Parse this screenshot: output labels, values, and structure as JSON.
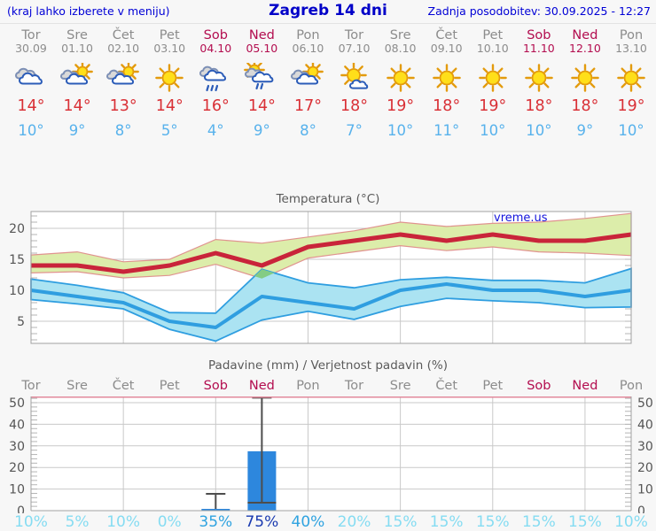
{
  "header": {
    "left_note": "(kraj lahko izberete v meniju)",
    "title": "Zagreb 14 dni",
    "updated": "Zadnja posodobitev: 30.09.2025 - 12:27"
  },
  "watermark": "vreme.us",
  "days": [
    {
      "name": "Tor",
      "date": "30.09",
      "weekend": false,
      "icon": "cloudy",
      "tmax": "14°",
      "tmin": "10°"
    },
    {
      "name": "Sre",
      "date": "01.10",
      "weekend": false,
      "icon": "partly-cloudy",
      "tmax": "14°",
      "tmin": "9°"
    },
    {
      "name": "Čet",
      "date": "02.10",
      "weekend": false,
      "icon": "partly-cloudy",
      "tmax": "13°",
      "tmin": "8°"
    },
    {
      "name": "Pet",
      "date": "03.10",
      "weekend": false,
      "icon": "sunny",
      "tmax": "14°",
      "tmin": "5°"
    },
    {
      "name": "Sob",
      "date": "04.10",
      "weekend": true,
      "icon": "rain",
      "tmax": "16°",
      "tmin": "4°"
    },
    {
      "name": "Ned",
      "date": "05.10",
      "weekend": true,
      "icon": "sun-rain",
      "tmax": "14°",
      "tmin": "9°"
    },
    {
      "name": "Pon",
      "date": "06.10",
      "weekend": false,
      "icon": "partly-cloudy",
      "tmax": "17°",
      "tmin": "8°"
    },
    {
      "name": "Tor",
      "date": "07.10",
      "weekend": false,
      "icon": "mostly-sunny",
      "tmax": "18°",
      "tmin": "7°"
    },
    {
      "name": "Sre",
      "date": "08.10",
      "weekend": false,
      "icon": "sunny",
      "tmax": "19°",
      "tmin": "10°"
    },
    {
      "name": "Čet",
      "date": "09.10",
      "weekend": false,
      "icon": "sunny",
      "tmax": "18°",
      "tmin": "11°"
    },
    {
      "name": "Pet",
      "date": "10.10",
      "weekend": false,
      "icon": "sunny",
      "tmax": "19°",
      "tmin": "10°"
    },
    {
      "name": "Sob",
      "date": "11.10",
      "weekend": true,
      "icon": "sunny",
      "tmax": "18°",
      "tmin": "10°"
    },
    {
      "name": "Ned",
      "date": "12.10",
      "weekend": true,
      "icon": "sunny",
      "tmax": "18°",
      "tmin": "9°"
    },
    {
      "name": "Pon",
      "date": "13.10",
      "weekend": false,
      "icon": "sunny",
      "tmax": "19°",
      "tmin": "10°"
    }
  ],
  "chart_data": [
    {
      "type": "line",
      "title": "Temperatura (°C)",
      "x_labels": [
        "Tor",
        "Sre",
        "Čet",
        "Pet",
        "Sob",
        "Ned",
        "Pon",
        "Tor",
        "Sre",
        "Čet",
        "Pet",
        "Sob",
        "Ned",
        "Pon"
      ],
      "yticks": [
        5,
        10,
        15,
        20
      ],
      "ylim": [
        1.4,
        22.7
      ],
      "grid": true,
      "legend": "none",
      "series": [
        {
          "name": "max temperature",
          "values": [
            14,
            14,
            13,
            14,
            16,
            14,
            17,
            18,
            19,
            18,
            19,
            18,
            18,
            19
          ],
          "band_upper": [
            15.7,
            16.2,
            14.6,
            15.0,
            18.2,
            17.6,
            18.6,
            19.6,
            21.0,
            20.3,
            20.8,
            21.0,
            21.6,
            22.4
          ],
          "band_lower": [
            12.8,
            13.0,
            12.0,
            12.4,
            14.2,
            11.9,
            15.2,
            16.2,
            17.2,
            16.4,
            17.0,
            16.2,
            16.0,
            15.6
          ]
        },
        {
          "name": "min temperature",
          "values": [
            10,
            9,
            8,
            5,
            4,
            9,
            8,
            7,
            10,
            11,
            10,
            10,
            9,
            10
          ],
          "band_upper": [
            11.8,
            10.8,
            9.6,
            6.4,
            6.3,
            13.4,
            11.2,
            10.4,
            11.7,
            12.1,
            11.6,
            11.6,
            11.2,
            13.5
          ],
          "band_lower": [
            8.5,
            7.8,
            7.0,
            3.7,
            1.8,
            5.2,
            6.6,
            5.3,
            7.4,
            8.7,
            8.3,
            8.0,
            7.2,
            7.3
          ]
        }
      ]
    },
    {
      "type": "bar",
      "title": "Padavine (mm) / Verjetnost padavin (%)",
      "x_labels": [
        "Tor",
        "Sre",
        "Čet",
        "Pet",
        "Sob",
        "Ned",
        "Pon",
        "Tor",
        "Sre",
        "Čet",
        "Pet",
        "Sob",
        "Ned",
        "Pon"
      ],
      "values_mm": [
        0,
        0,
        0,
        0,
        0.8,
        27.5,
        0,
        0,
        0,
        0,
        0,
        0,
        0,
        0
      ],
      "whiskers": [
        null,
        null,
        null,
        null,
        {
          "low": 0.8,
          "high": 7.8,
          "low_cap": false
        },
        {
          "low": 3.7,
          "high": 52.3,
          "low_cap": true
        },
        null,
        null,
        null,
        null,
        null,
        null,
        null,
        null
      ],
      "probabilities_pct": [
        10,
        5,
        10,
        0,
        35,
        75,
        40,
        20,
        15,
        15,
        15,
        15,
        15,
        10
      ],
      "yticks": [
        0,
        10,
        20,
        30,
        40,
        50
      ],
      "ylim": [
        0,
        52.9
      ],
      "grid": true
    }
  ],
  "colors": {
    "weekday": "#8c8c8c",
    "weekend": "#b30d4f",
    "temp_max_text": "#d93036",
    "temp_min_text": "#58b2ec",
    "line_max": "#c9243a",
    "band_max": "#dcedaa",
    "band_max_edge": "#e0938f",
    "line_min": "#2f9ee0",
    "band_min": "#abe3f2",
    "band_overlap": "#84cc84",
    "bar": "#2d87dd",
    "whisker": "#4d4d4d",
    "grid_line": "#c9c9c9",
    "minor_tick": "#b5b5b5",
    "plot_border": "#a0a0a0",
    "precip_top_line": "#e2899b",
    "axis_text": "#555555",
    "prob_low": "#85dcf2",
    "prob_mid": "#2fa3e0",
    "prob_high": "#1a3ab0"
  }
}
